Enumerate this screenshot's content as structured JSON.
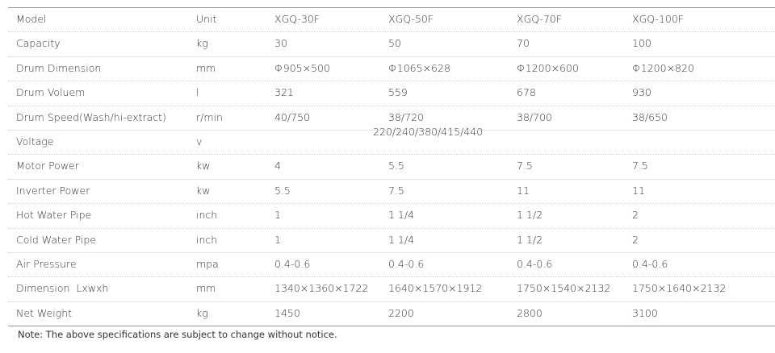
{
  "table": {
    "header": [
      "Model",
      "Unit",
      "XGQ-30F",
      "XGQ-50F",
      "XGQ-70F",
      "XGQ-100F"
    ],
    "rows": [
      [
        "Capacity",
        "kg",
        "30",
        "50",
        "70",
        "100"
      ],
      [
        "Drum Dimension",
        "mm",
        "Φ905×500",
        "Φ1065×628",
        "Φ1200×600",
        "Φ1200×820"
      ],
      [
        "Drum Voluem",
        "l",
        "321",
        "559",
        "678",
        "930"
      ],
      [
        "Drum Speed(Wash/hi-extract)",
        "r/min",
        "40/750",
        "38/720",
        "38/700",
        "38/650"
      ],
      [
        "Voltage",
        "v",
        "220/240/380/415/440"
      ],
      [
        "Motor Power",
        "kw",
        "4",
        "5.5",
        "7.5",
        "7.5"
      ],
      [
        "Inverter Power",
        "kw",
        "5.5",
        "7.5",
        "11",
        "11"
      ],
      [
        "Hot Water Pipe",
        "inch",
        "1",
        "1 1/4",
        "1 1/2",
        "2"
      ],
      [
        "Cold Water Pipe",
        "inch",
        "1",
        "1 1/4",
        "1 1/2",
        "2"
      ],
      [
        "Air Pressure",
        "mpa",
        "0.4-0.6",
        "0.4-0.6",
        "0.4-0.6",
        "0.4-0.6"
      ],
      [
        "Dimension  Lxwxh",
        "mm",
        "1340×1360×1722",
        "1640×1570×1912",
        "1750×1540×2132",
        "1750×1640×2132"
      ],
      [
        "Net Weight",
        "kg",
        "1450",
        "2200",
        "2800",
        "3100"
      ]
    ]
  },
  "note": "Note: The above specifications are subject to change without notice."
}
